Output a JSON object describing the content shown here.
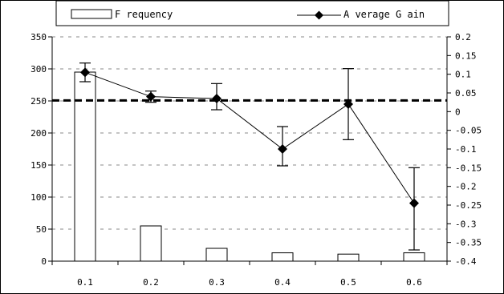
{
  "chart_data": {
    "type": "bar",
    "title": "",
    "xlabel": "",
    "ylabel": "",
    "categories": [
      "0.1",
      "0.2",
      "0.3",
      "0.4",
      "0.5",
      "0.6"
    ],
    "series": [
      {
        "name": "Frequency",
        "type": "bar",
        "axis": "left",
        "values": [
          295,
          55,
          20,
          13,
          11,
          13
        ]
      },
      {
        "name": "Average Gain",
        "type": "line",
        "axis": "right",
        "marker": "diamond",
        "values": [
          0.105,
          0.04,
          0.035,
          -0.1,
          0.02,
          -0.245
        ],
        "error_low": [
          0.08,
          0.025,
          0.005,
          -0.145,
          -0.075,
          -0.37
        ],
        "error_high": [
          0.13,
          0.055,
          0.075,
          -0.04,
          0.115,
          -0.15
        ]
      }
    ],
    "y_left": {
      "min": 0,
      "max": 350,
      "ticks": [
        "0",
        "50",
        "100",
        "150",
        "200",
        "250",
        "300",
        "350"
      ]
    },
    "y_right": {
      "min": -0.4,
      "max": 0.2,
      "ticks": [
        "0.2",
        "0.15",
        "0.1",
        "0.05",
        "0",
        "-0.05",
        "-0.1",
        "-0.15",
        "-0.2",
        "-0.25",
        "-0.3",
        "-0.35",
        "-0.4"
      ]
    },
    "reference_line": {
      "axis": "right",
      "value": 0.03,
      "style": "dashed"
    },
    "legend": {
      "position": "top",
      "entries": [
        {
          "label": "F requency",
          "series": "Frequency"
        },
        {
          "label": "A verage G ain",
          "series": "Average Gain"
        }
      ]
    },
    "grid": "horizontal-dashed",
    "colors": {
      "bar_fill": "#ffffff",
      "stroke": "#000000",
      "gridline": "#888888"
    }
  }
}
